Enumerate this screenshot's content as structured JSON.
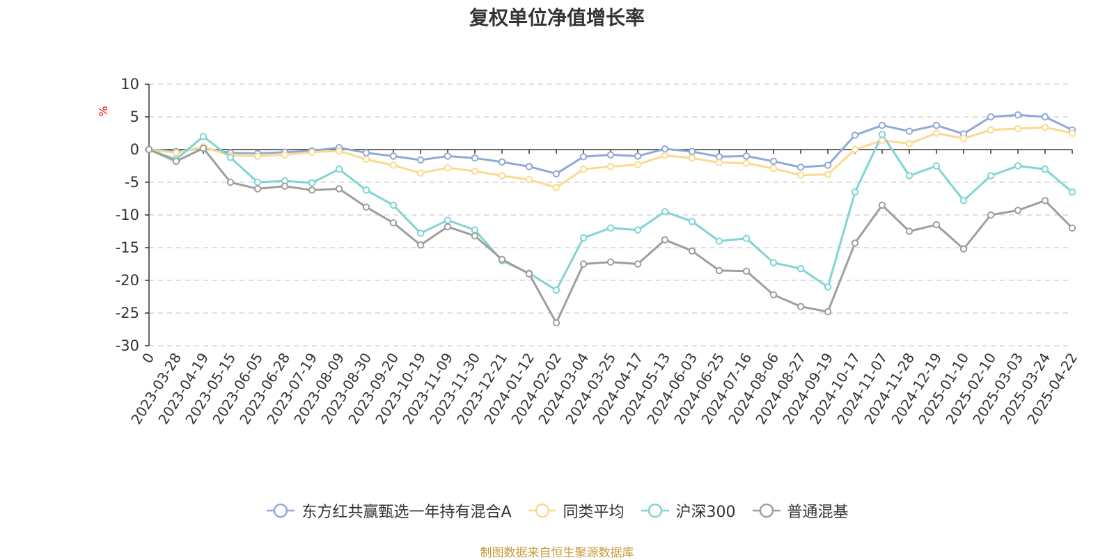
{
  "chart_data": {
    "type": "line",
    "title": "复权单位净值增长率",
    "ylabel": "%",
    "ylim": [
      -30,
      10
    ],
    "yticks": [
      10,
      5,
      0,
      -5,
      -10,
      -15,
      -20,
      -25,
      -30
    ],
    "xtick_labels": [
      "0",
      "2023-03-28",
      "2023-04-19",
      "2023-05-15",
      "2023-06-05",
      "2023-06-28",
      "2023-07-19",
      "2023-08-09",
      "2023-08-30",
      "2023-09-20",
      "2023-10-19",
      "2023-11-09",
      "2023-11-30",
      "2023-12-21",
      "2024-01-12",
      "2024-02-02",
      "2024-03-04",
      "2024-03-25",
      "2024-04-17",
      "2024-05-13",
      "2024-06-03",
      "2024-06-25",
      "2024-07-16",
      "2024-08-06",
      "2024-08-27",
      "2024-09-19",
      "2024-10-17",
      "2024-11-07",
      "2024-11-28",
      "2024-12-19",
      "2025-01-10",
      "2025-02-10",
      "2025-03-03",
      "2025-03-24",
      "2025-04-22"
    ],
    "grid": true,
    "legend_position": "bottom",
    "series": [
      {
        "name": "东方红共赢甄选一年持有混合A",
        "color": "#8fa9d8",
        "values": [
          0,
          -0.3,
          0.2,
          -0.5,
          -0.6,
          -0.4,
          -0.2,
          0.3,
          -0.5,
          -1.0,
          -1.6,
          -1.0,
          -1.3,
          -1.9,
          -2.6,
          -3.7,
          -1.1,
          -0.8,
          -1.0,
          0.1,
          -0.3,
          -1.1,
          -1.0,
          -1.8,
          -2.7,
          -2.4,
          2.2,
          3.7,
          2.8,
          3.7,
          2.4,
          5.0,
          5.3,
          5.0,
          3.0
        ]
      },
      {
        "name": "同类平均",
        "color": "#fcd98f",
        "values": [
          0,
          -0.5,
          0.4,
          -0.9,
          -1.0,
          -0.8,
          -0.4,
          -0.2,
          -1.5,
          -2.4,
          -3.6,
          -2.8,
          -3.3,
          -4.0,
          -4.6,
          -5.8,
          -3.0,
          -2.6,
          -2.3,
          -0.9,
          -1.3,
          -2.0,
          -2.1,
          -2.9,
          -3.9,
          -3.8,
          0.0,
          1.4,
          0.9,
          2.5,
          1.7,
          3.0,
          3.2,
          3.4,
          2.5
        ]
      },
      {
        "name": "沪深300",
        "color": "#7fd4d4",
        "values": [
          0,
          -1.5,
          2.0,
          -1.2,
          -5.0,
          -4.8,
          -5.1,
          -3.0,
          -6.2,
          -8.5,
          -12.8,
          -10.8,
          -12.3,
          -17.0,
          -18.9,
          -21.5,
          -13.5,
          -12.0,
          -12.3,
          -9.5,
          -11.0,
          -14.0,
          -13.6,
          -17.3,
          -18.2,
          -21.0,
          -6.5,
          2.3,
          -4.0,
          -2.5,
          -7.8,
          -4.0,
          -2.5,
          -3.0,
          -6.5
        ]
      },
      {
        "name": "普通混基",
        "color": "#9e9e9e",
        "values": [
          0,
          -1.8,
          0.2,
          -5.0,
          -6.0,
          -5.6,
          -6.2,
          -6.0,
          -8.8,
          -11.2,
          -14.6,
          -11.8,
          -13.2,
          -16.8,
          -19.0,
          -26.5,
          -17.5,
          -17.2,
          -17.5,
          -13.8,
          -15.5,
          -18.5,
          -18.6,
          -22.2,
          -24.0,
          -24.8,
          -14.3,
          -8.5,
          -12.5,
          -11.5,
          -15.2,
          -10.0,
          -9.3,
          -7.8,
          -12.0
        ]
      }
    ]
  },
  "footer": {
    "source": "制图数据来自恒生聚源数据库"
  }
}
